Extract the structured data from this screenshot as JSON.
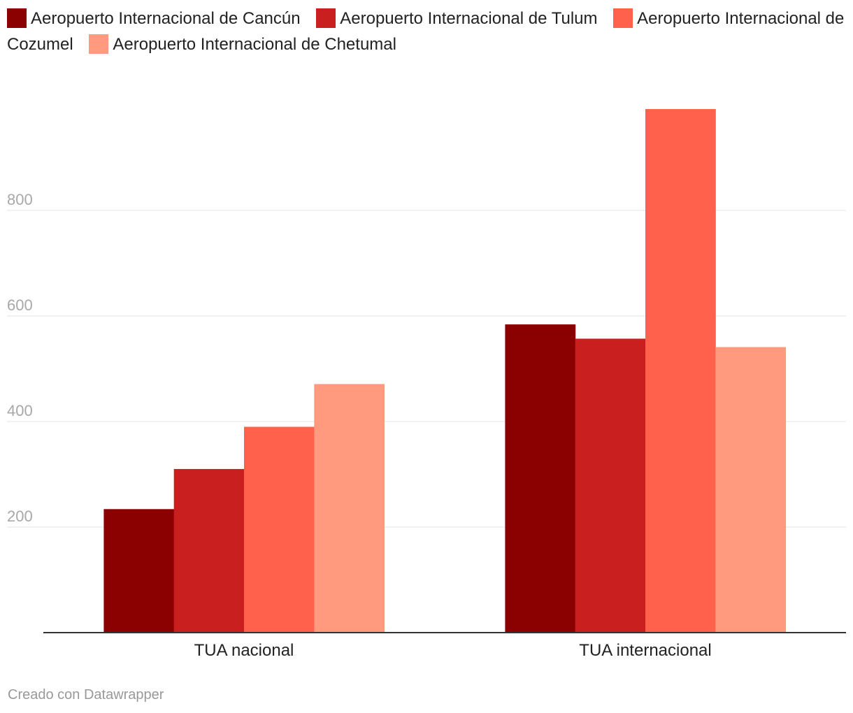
{
  "chart_data": {
    "type": "bar",
    "categories": [
      "TUA nacional",
      "TUA internacional"
    ],
    "series": [
      {
        "name": "Aeropuerto Internacional de Cancún",
        "color": "#8b0000",
        "values": [
          234,
          584
        ]
      },
      {
        "name": "Aeropuerto Internacional de Tulum",
        "color": "#c91f1f",
        "values": [
          310,
          557
        ]
      },
      {
        "name": "Aeropuerto Internacional de Cozumel",
        "color": "#ff614c",
        "values": [
          390,
          992
        ]
      },
      {
        "name": "Aeropuerto Internacional de Chetumal",
        "color": "#ff9a7e",
        "values": [
          471,
          541
        ]
      }
    ],
    "ylim": [
      0,
      1000
    ],
    "yticks": [
      "200",
      "400",
      "600",
      "800"
    ],
    "grid": true,
    "legend_position": "top-left"
  },
  "footer": {
    "credit": "Creado con Datawrapper"
  }
}
